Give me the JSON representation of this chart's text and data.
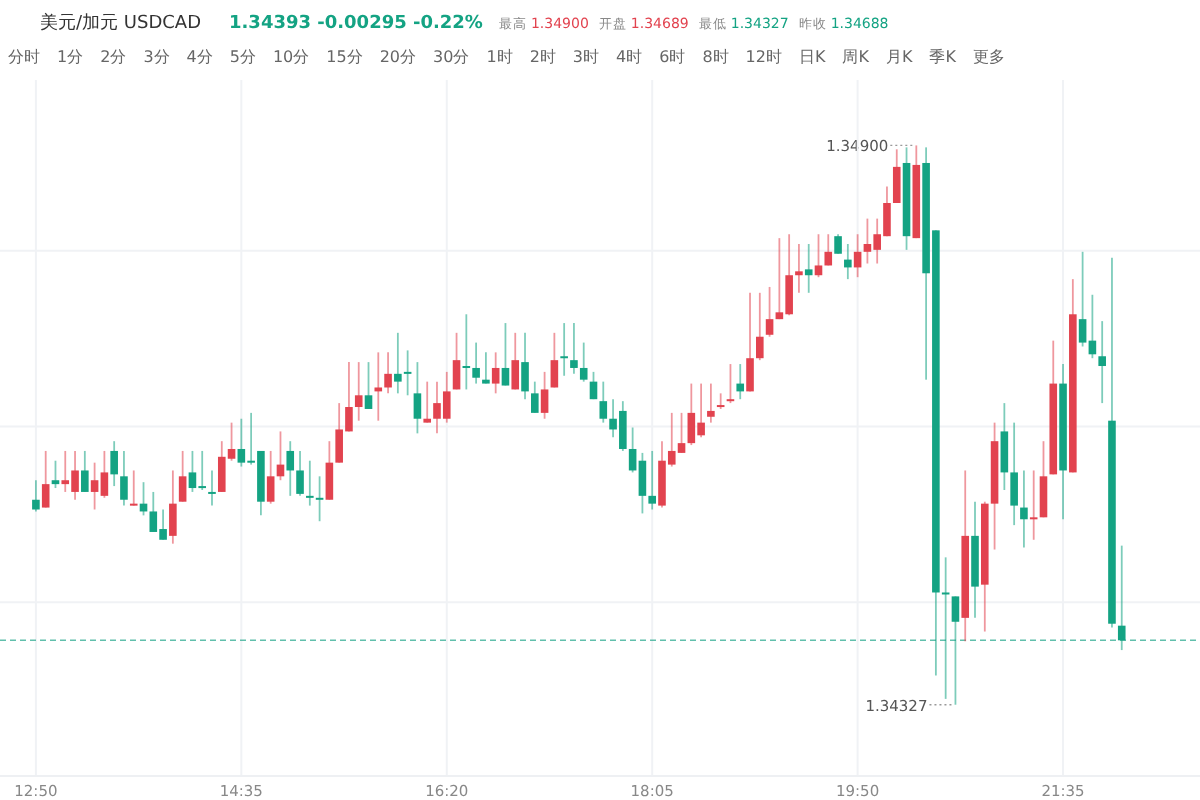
{
  "chart_data": {
    "type": "candlestick",
    "title": "美元/加元 USDCAD",
    "subtitle": "1.34393 -0.00295 -0.22%",
    "annotations": [
      "最高 1.34900",
      "开盘 1.34689",
      "最低 1.34327",
      "昨收 1.34688",
      "分时",
      "1分",
      "2分",
      "3分",
      "4分",
      "5分",
      "10分",
      "15分",
      "20分",
      "30分",
      "1时",
      "2时",
      "3时",
      "4时",
      "6时",
      "8时",
      "12时",
      "日K",
      "周K",
      "月K",
      "季K",
      "更多",
      {
        "text": "1.34900",
        "x": 20.3333,
        "y": 1.349
      },
      {
        "text": "1.34327",
        "x": 20.6667,
        "y": 1.34327
      }
    ],
    "x": [
      12.8333,
      12.9167,
      13.0,
      13.0833,
      13.1667,
      13.25,
      13.3333,
      13.4167,
      13.5,
      13.5833,
      13.6667,
      13.75,
      13.8333,
      13.9167,
      14.0,
      14.0833,
      14.1667,
      14.25,
      14.3333,
      14.4167,
      14.5,
      14.5833,
      14.6667,
      14.75,
      14.8333,
      14.9167,
      15.0,
      15.0833,
      15.1667,
      15.25,
      15.3333,
      15.4167,
      15.5,
      15.5833,
      15.6667,
      15.75,
      15.8333,
      15.9167,
      16.0,
      16.0833,
      16.1667,
      16.25,
      16.3333,
      16.4167,
      16.5,
      16.5833,
      16.6667,
      16.75,
      16.8333,
      16.9167,
      17.0,
      17.0833,
      17.1667,
      17.25,
      17.3333,
      17.4167,
      17.5,
      17.5833,
      17.6667,
      17.75,
      17.8333,
      17.9167,
      18.0,
      18.0833,
      18.1667,
      18.25,
      18.3333,
      18.4167,
      18.5,
      18.5833,
      18.6667,
      18.75,
      18.8333,
      18.9167,
      19.0,
      19.0833,
      19.1667,
      19.25,
      19.3333,
      19.4167,
      19.5,
      19.5833,
      19.6667,
      19.75,
      19.8333,
      19.9167,
      20.0,
      20.0833,
      20.1667,
      20.25,
      20.3333,
      20.4167,
      20.5,
      20.5833,
      20.6667,
      20.75,
      20.8333,
      20.9167,
      21.0,
      21.0833,
      21.1667,
      21.25,
      21.3333,
      21.4167,
      21.5,
      21.5833,
      21.6667,
      21.75,
      21.8333,
      21.9167,
      22.0,
      22.0833
    ],
    "ohlc": [
      [
        1.34537,
        1.34557,
        1.34525,
        1.34527
      ],
      [
        1.34529,
        1.34587,
        1.34529,
        1.34553
      ],
      [
        1.34557,
        1.34577,
        1.34549,
        1.34553
      ],
      [
        1.34553,
        1.34587,
        1.34545,
        1.34557
      ],
      [
        1.34545,
        1.34587,
        1.34537,
        1.34567
      ],
      [
        1.34567,
        1.34587,
        1.34545,
        1.34545
      ],
      [
        1.34545,
        1.34575,
        1.34527,
        1.34557
      ],
      [
        1.34541,
        1.34587,
        1.34539,
        1.34565
      ],
      [
        1.34587,
        1.34597,
        1.34551,
        1.34563
      ],
      [
        1.34561,
        1.34587,
        1.34531,
        1.34537
      ],
      [
        1.34531,
        1.34567,
        1.34531,
        1.34533
      ],
      [
        1.34533,
        1.34555,
        1.34521,
        1.34525
      ],
      [
        1.34525,
        1.34545,
        1.34504,
        1.34504
      ],
      [
        1.34507,
        1.34527,
        1.34496,
        1.34496
      ],
      [
        1.345,
        1.34567,
        1.34492,
        1.34533
      ],
      [
        1.34535,
        1.34587,
        1.34535,
        1.34561
      ],
      [
        1.34565,
        1.34587,
        1.34545,
        1.34549
      ],
      [
        1.34551,
        1.34587,
        1.34547,
        1.34549
      ],
      [
        1.34545,
        1.34567,
        1.34531,
        1.34543
      ],
      [
        1.34545,
        1.34597,
        1.34545,
        1.34581
      ],
      [
        1.34579,
        1.34616,
        1.34577,
        1.34589
      ],
      [
        1.34589,
        1.3462,
        1.34571,
        1.34575
      ],
      [
        1.34577,
        1.34626,
        1.34573,
        1.34575
      ],
      [
        1.34587,
        1.34587,
        1.34521,
        1.34535
      ],
      [
        1.34535,
        1.34587,
        1.34533,
        1.34561
      ],
      [
        1.34561,
        1.34607,
        1.34557,
        1.34573
      ],
      [
        1.34587,
        1.34597,
        1.34541,
        1.34567
      ],
      [
        1.34567,
        1.34587,
        1.34541,
        1.34543
      ],
      [
        1.34541,
        1.34577,
        1.34531,
        1.34539
      ],
      [
        1.34539,
        1.34561,
        1.34515,
        1.34537
      ],
      [
        1.34537,
        1.34597,
        1.34537,
        1.34575
      ],
      [
        1.34575,
        1.34636,
        1.34575,
        1.34609
      ],
      [
        1.34607,
        1.34678,
        1.34607,
        1.34632
      ],
      [
        1.34632,
        1.34678,
        1.34618,
        1.34644
      ],
      [
        1.34644,
        1.34678,
        1.3463,
        1.3463
      ],
      [
        1.34648,
        1.34688,
        1.34618,
        1.34652
      ],
      [
        1.34652,
        1.34688,
        1.34646,
        1.34666
      ],
      [
        1.34666,
        1.34708,
        1.34646,
        1.34658
      ],
      [
        1.34668,
        1.3469,
        1.34644,
        1.34666
      ],
      [
        1.34646,
        1.34678,
        1.34605,
        1.3462
      ],
      [
        1.34616,
        1.34658,
        1.34616,
        1.3462
      ],
      [
        1.3462,
        1.34658,
        1.34605,
        1.34636
      ],
      [
        1.3462,
        1.34668,
        1.34616,
        1.34648
      ],
      [
        1.3465,
        1.34708,
        1.3465,
        1.3468
      ],
      [
        1.34674,
        1.34727,
        1.3465,
        1.34672
      ],
      [
        1.34672,
        1.34698,
        1.34656,
        1.34662
      ],
      [
        1.3466,
        1.34688,
        1.34656,
        1.34656
      ],
      [
        1.34656,
        1.34688,
        1.34646,
        1.34672
      ],
      [
        1.34672,
        1.34718,
        1.34654,
        1.34654
      ],
      [
        1.3465,
        1.34708,
        1.3465,
        1.3468
      ],
      [
        1.34678,
        1.34708,
        1.3464,
        1.34648
      ],
      [
        1.34646,
        1.34658,
        1.34626,
        1.34626
      ],
      [
        1.34626,
        1.34668,
        1.3462,
        1.3465
      ],
      [
        1.34652,
        1.34708,
        1.34652,
        1.3468
      ],
      [
        1.34684,
        1.34718,
        1.34664,
        1.34682
      ],
      [
        1.3468,
        1.34718,
        1.34666,
        1.34672
      ],
      [
        1.34672,
        1.34698,
        1.34658,
        1.3466
      ],
      [
        1.34658,
        1.34668,
        1.3464,
        1.3464
      ],
      [
        1.34638,
        1.34658,
        1.34616,
        1.3462
      ],
      [
        1.3462,
        1.3464,
        1.34601,
        1.34609
      ],
      [
        1.34628,
        1.34638,
        1.34587,
        1.34589
      ],
      [
        1.34589,
        1.34611,
        1.34565,
        1.34567
      ],
      [
        1.34577,
        1.34585,
        1.34523,
        1.34541
      ],
      [
        1.34541,
        1.34587,
        1.34527,
        1.34533
      ],
      [
        1.34531,
        1.34597,
        1.34529,
        1.34577
      ],
      [
        1.34573,
        1.34626,
        1.34571,
        1.34587
      ],
      [
        1.34585,
        1.34626,
        1.34585,
        1.34595
      ],
      [
        1.34595,
        1.34656,
        1.34593,
        1.34626
      ],
      [
        1.34603,
        1.34656,
        1.34601,
        1.34616
      ],
      [
        1.34622,
        1.34656,
        1.34616,
        1.34628
      ],
      [
        1.34632,
        1.34646,
        1.3463,
        1.34634
      ],
      [
        1.34638,
        1.34676,
        1.34636,
        1.3464
      ],
      [
        1.34656,
        1.34676,
        1.3464,
        1.34648
      ],
      [
        1.34648,
        1.34749,
        1.34648,
        1.34682
      ],
      [
        1.34682,
        1.34749,
        1.3468,
        1.34704
      ],
      [
        1.34706,
        1.34755,
        1.34704,
        1.34722
      ],
      [
        1.34722,
        1.34805,
        1.34722,
        1.34729
      ],
      [
        1.34727,
        1.34809,
        1.34726,
        1.34767
      ],
      [
        1.34767,
        1.34799,
        1.34749,
        1.34771
      ],
      [
        1.34773,
        1.34799,
        1.34749,
        1.34767
      ],
      [
        1.34767,
        1.34809,
        1.34765,
        1.34777
      ],
      [
        1.34777,
        1.34809,
        1.34777,
        1.34791
      ],
      [
        1.34807,
        1.34809,
        1.34789,
        1.34789
      ],
      [
        1.34783,
        1.34799,
        1.34763,
        1.34775
      ],
      [
        1.34775,
        1.34809,
        1.34765,
        1.34791
      ],
      [
        1.34791,
        1.34825,
        1.34779,
        1.34799
      ],
      [
        1.34793,
        1.34825,
        1.34779,
        1.34809
      ],
      [
        1.34807,
        1.34858,
        1.34807,
        1.34841
      ],
      [
        1.34841,
        1.34896,
        1.34841,
        1.34878
      ],
      [
        1.34882,
        1.34898,
        1.34793,
        1.34807
      ],
      [
        1.34805,
        1.349,
        1.34805,
        1.3488
      ],
      [
        1.34882,
        1.34898,
        1.3466,
        1.34769
      ],
      [
        1.34813,
        1.34813,
        1.34357,
        1.34442
      ],
      [
        1.34442,
        1.34478,
        1.34333,
        1.3444
      ],
      [
        1.34438,
        1.34438,
        1.34327,
        1.34412
      ],
      [
        1.34416,
        1.34567,
        1.34392,
        1.345
      ],
      [
        1.345,
        1.34535,
        1.34416,
        1.34448
      ],
      [
        1.3445,
        1.34535,
        1.34402,
        1.34533
      ],
      [
        1.34533,
        1.34616,
        1.34486,
        1.34597
      ],
      [
        1.34607,
        1.34636,
        1.34547,
        1.34565
      ],
      [
        1.34565,
        1.34616,
        1.34511,
        1.34531
      ],
      [
        1.34529,
        1.34567,
        1.34488,
        1.34517
      ],
      [
        1.34517,
        1.34567,
        1.34496,
        1.34519
      ],
      [
        1.34519,
        1.34597,
        1.34519,
        1.34561
      ],
      [
        1.34563,
        1.347,
        1.34563,
        1.34656
      ],
      [
        1.34656,
        1.34676,
        1.34517,
        1.34567
      ],
      [
        1.34565,
        1.34763,
        1.34565,
        1.34727
      ],
      [
        1.34722,
        1.34791,
        1.34694,
        1.34698
      ],
      [
        1.347,
        1.34747,
        1.34682,
        1.34686
      ],
      [
        1.34684,
        1.3472,
        1.34636,
        1.34674
      ],
      [
        1.34618,
        1.34785,
        1.34406,
        1.3441
      ],
      [
        1.34408,
        1.3449,
        1.34383,
        1.34393
      ]
    ],
    "xlim": [
      12.8,
      22.75
    ],
    "xticks": [
      {
        "value": 12.8333,
        "label": "12:50"
      },
      {
        "value": 14.5833,
        "label": "14:35"
      },
      {
        "value": 16.3333,
        "label": "16:20"
      },
      {
        "value": 18.0833,
        "label": "18:05"
      },
      {
        "value": 19.8333,
        "label": "19:50"
      },
      {
        "value": 21.5833,
        "label": "21:35"
      }
    ],
    "ylim": [
      1.34254,
      1.34967
    ],
    "yticks": [
      {
        "value": 1.34432,
        "label": null
      },
      {
        "value": 1.34612,
        "label": null
      },
      {
        "value": 1.34792,
        "label": null
      }
    ],
    "tick_labels": "x",
    "grid": true,
    "ref_lines": [
      {
        "axis": "y",
        "value": 1.34393,
        "color": "#1fa58a",
        "line_style": "dashed"
      }
    ]
  }
}
